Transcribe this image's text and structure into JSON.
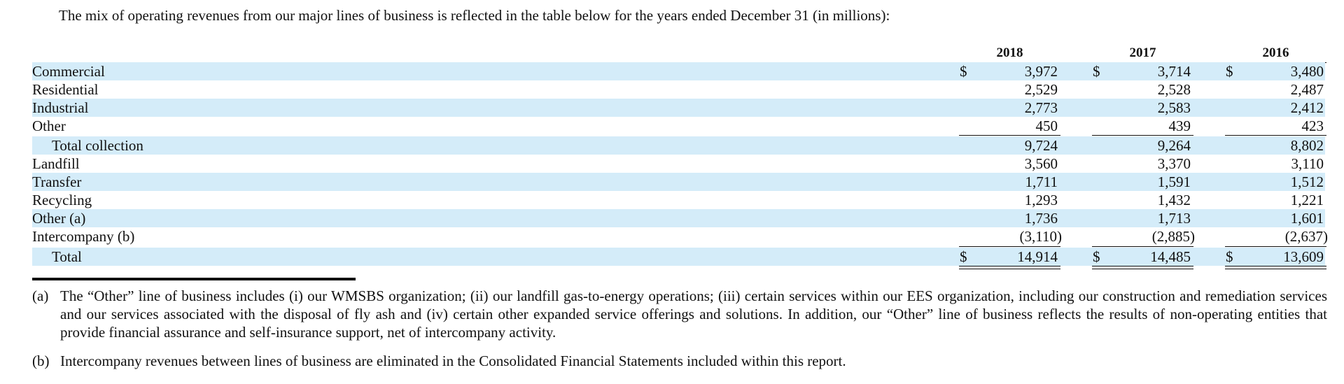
{
  "intro": "The mix of operating revenues from our major lines of business is reflected in the table below for the years ended December 31 (in millions):",
  "years": [
    "2018",
    "2017",
    "2016"
  ],
  "currency_symbol": "$",
  "rows": [
    {
      "label": "Commercial",
      "values": [
        "3,972",
        "3,714",
        "3,480"
      ]
    },
    {
      "label": "Residential",
      "values": [
        "2,529",
        "2,528",
        "2,487"
      ]
    },
    {
      "label": "Industrial",
      "values": [
        "2,773",
        "2,583",
        "2,412"
      ]
    },
    {
      "label": "Other",
      "values": [
        "450",
        "439",
        "423"
      ]
    },
    {
      "label": "Total collection",
      "values": [
        "9,724",
        "9,264",
        "8,802"
      ]
    },
    {
      "label": "Landfill",
      "values": [
        "3,560",
        "3,370",
        "3,110"
      ]
    },
    {
      "label": "Transfer",
      "values": [
        "1,711",
        "1,591",
        "1,512"
      ]
    },
    {
      "label": "Recycling",
      "values": [
        "1,293",
        "1,432",
        "1,221"
      ]
    },
    {
      "label": "Other (a)",
      "values": [
        "1,736",
        "1,713",
        "1,601"
      ]
    },
    {
      "label": "Intercompany (b)",
      "values": [
        "(3,110)",
        "(2,885)",
        "(2,637)"
      ]
    },
    {
      "label": "Total",
      "values": [
        "14,914",
        "14,485",
        "13,609"
      ]
    }
  ],
  "footnotes": [
    {
      "mark": "(a)",
      "text": "The “Other” line of business includes (i) our WMSBS organization; (ii) our landfill gas-to-energy operations; (iii) certain services within our EES organization, including our construction and remediation services and our services associated with the disposal of fly ash and (iv) certain other expanded service offerings and solutions. In addition, our “Other” line of business reflects the results of non-operating entities that provide financial assurance and self-insurance support, net of intercompany activity."
    },
    {
      "mark": "(b)",
      "text": "Intercompany revenues between lines of business are eliminated in the Consolidated Financial Statements included within this report."
    }
  ],
  "colors": {
    "row_shade": "#d4ecf9",
    "text": "#111111"
  }
}
